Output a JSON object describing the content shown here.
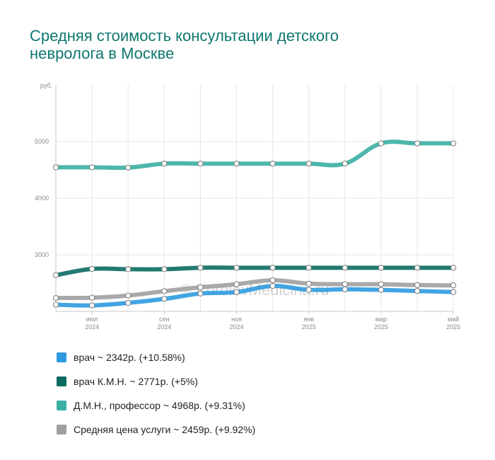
{
  "title_lines": [
    "Средняя стоимость консультации детского",
    "невролога в Москве"
  ],
  "watermark": "© KorolevMedicina.ru",
  "chart_data": {
    "type": "line",
    "ylabel": "руб.",
    "ylim": [
      2000,
      6000
    ],
    "yticks": [
      3000,
      4000,
      5000
    ],
    "grid": true,
    "legend_placement": "bottom",
    "x": [
      0,
      1,
      2,
      3,
      4,
      5,
      6,
      7,
      8,
      9,
      10,
      11
    ],
    "xticks": [
      {
        "index": 1,
        "line1": "июл",
        "line2": "2024"
      },
      {
        "index": 3,
        "line1": "сен",
        "line2": "2024"
      },
      {
        "index": 5,
        "line1": "ноя",
        "line2": "2024"
      },
      {
        "index": 7,
        "line1": "янв",
        "line2": "2025"
      },
      {
        "index": 9,
        "line1": "мар",
        "line2": "2025"
      },
      {
        "index": 11,
        "line1": "май",
        "line2": "2025"
      }
    ],
    "series": [
      {
        "name": "врач",
        "legend": "врач ~ 2342р. (+10.58%)",
        "color": "#2e9be0",
        "values": [
          2118,
          2105,
          2150,
          2220,
          2315,
          2340,
          2450,
          2380,
          2390,
          2380,
          2360,
          2342
        ]
      },
      {
        "name": "врач К.М.Н.",
        "legend": "врач К.М.Н. ~ 2771р. (+5%)",
        "color": "#0b6b61",
        "values": [
          2640,
          2750,
          2745,
          2745,
          2771,
          2771,
          2771,
          2771,
          2771,
          2771,
          2771,
          2771
        ]
      },
      {
        "name": "Д.М.Н., профессор",
        "legend": "Д.М.Н., профессор ~ 4968р. (+9.31%)",
        "color": "#3aafa2",
        "values": [
          4545,
          4545,
          4540,
          4610,
          4610,
          4610,
          4610,
          4610,
          4610,
          4968,
          4968,
          4968
        ]
      },
      {
        "name": "Средняя цена услуги",
        "legend": "Средняя цена услуги ~ 2459р. (+9.92%)",
        "color": "#a0a0a0",
        "values": [
          2237,
          2242,
          2280,
          2357,
          2425,
          2480,
          2550,
          2490,
          2480,
          2480,
          2465,
          2459
        ]
      }
    ]
  }
}
